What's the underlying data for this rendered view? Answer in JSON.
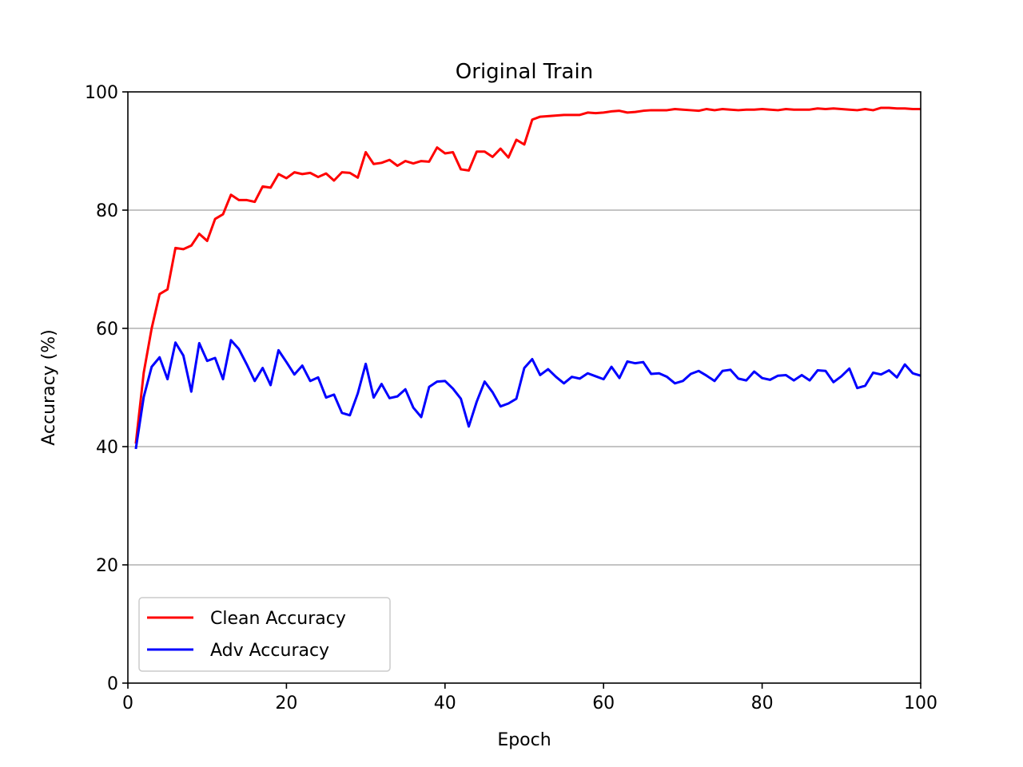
{
  "chart_data": {
    "type": "line",
    "title": "Original Train",
    "xlabel": "Epoch",
    "ylabel": "Accuracy (%)",
    "xlim": [
      0,
      100
    ],
    "ylim": [
      0,
      100
    ],
    "x_ticks": [
      0,
      20,
      40,
      60,
      80,
      100
    ],
    "y_ticks": [
      0,
      20,
      40,
      60,
      80,
      100
    ],
    "grid": "horizontal",
    "legend_position": "lower-left",
    "x": [
      1,
      2,
      3,
      4,
      5,
      6,
      7,
      8,
      9,
      10,
      11,
      12,
      13,
      14,
      15,
      16,
      17,
      18,
      19,
      20,
      21,
      22,
      23,
      24,
      25,
      26,
      27,
      28,
      29,
      30,
      31,
      32,
      33,
      34,
      35,
      36,
      37,
      38,
      39,
      40,
      41,
      42,
      43,
      44,
      45,
      46,
      47,
      48,
      49,
      50,
      51,
      52,
      53,
      54,
      55,
      56,
      57,
      58,
      59,
      60,
      61,
      62,
      63,
      64,
      65,
      66,
      67,
      68,
      69,
      70,
      71,
      72,
      73,
      74,
      75,
      76,
      77,
      78,
      79,
      80,
      81,
      82,
      83,
      84,
      85,
      86,
      87,
      88,
      89,
      90,
      91,
      92,
      93,
      94,
      95,
      96,
      97,
      98,
      99,
      100
    ],
    "series": [
      {
        "name": "Clean Accuracy",
        "color": "#ff0000",
        "values": [
          40.5,
          52.5,
          60.0,
          65.8,
          66.6,
          73.6,
          73.4,
          74.0,
          76.0,
          74.8,
          78.5,
          79.3,
          82.6,
          81.7,
          81.7,
          81.4,
          84.0,
          83.8,
          86.1,
          85.4,
          86.4,
          86.1,
          86.3,
          85.6,
          86.2,
          85.0,
          86.4,
          86.3,
          85.5,
          89.8,
          87.8,
          88.0,
          88.5,
          87.5,
          88.3,
          87.9,
          88.3,
          88.2,
          90.6,
          89.6,
          89.8,
          86.9,
          86.7,
          89.9,
          89.9,
          89.0,
          90.4,
          88.9,
          91.9,
          91.1,
          95.3,
          95.8,
          95.9,
          96.0,
          96.1,
          96.1,
          96.1,
          96.5,
          96.4,
          96.5,
          96.7,
          96.8,
          96.5,
          96.6,
          96.8,
          96.9,
          96.9,
          96.9,
          97.1,
          97.0,
          96.9,
          96.8,
          97.1,
          96.9,
          97.1,
          97.0,
          96.9,
          97.0,
          97.0,
          97.1,
          97.0,
          96.9,
          97.1,
          97.0,
          97.0,
          97.0,
          97.2,
          97.1,
          97.2,
          97.1,
          97.0,
          96.9,
          97.1,
          96.9,
          97.3,
          97.3,
          97.2,
          97.2,
          97.1,
          97.1
        ]
      },
      {
        "name": "Adv Accuracy",
        "color": "#0000ff",
        "values": [
          39.6,
          48.4,
          53.5,
          55.1,
          51.4,
          57.6,
          55.4,
          49.3,
          57.5,
          54.5,
          55.0,
          51.4,
          58.0,
          56.5,
          53.9,
          51.1,
          53.3,
          50.4,
          56.3,
          54.3,
          52.2,
          53.7,
          51.1,
          51.7,
          48.3,
          48.8,
          45.7,
          45.3,
          49.0,
          54.0,
          48.3,
          50.6,
          48.2,
          48.5,
          49.7,
          46.6,
          45.0,
          50.1,
          51.0,
          51.1,
          49.8,
          48.1,
          43.4,
          47.6,
          51.0,
          49.2,
          46.8,
          47.3,
          48.1,
          53.3,
          54.8,
          52.1,
          53.1,
          51.8,
          50.7,
          51.8,
          51.5,
          52.4,
          51.9,
          51.4,
          53.5,
          51.6,
          54.4,
          54.1,
          54.3,
          52.3,
          52.4,
          51.8,
          50.7,
          51.1,
          52.3,
          52.8,
          52.0,
          51.1,
          52.8,
          53.0,
          51.5,
          51.2,
          52.7,
          51.6,
          51.3,
          52.0,
          52.1,
          51.2,
          52.1,
          51.2,
          52.9,
          52.8,
          50.9,
          51.9,
          53.2,
          49.9,
          50.3,
          52.5,
          52.2,
          52.9,
          51.7,
          53.9,
          52.4,
          52.0
        ]
      }
    ]
  }
}
